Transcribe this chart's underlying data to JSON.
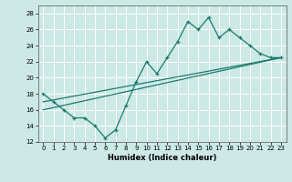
{
  "xlabel": "Humidex (Indice chaleur)",
  "bg_color": "#cce9e5",
  "grid_color": "#b0d8d4",
  "line_color": "#1a7a6e",
  "xlim": [
    -0.5,
    23.5
  ],
  "ylim": [
    12,
    29
  ],
  "yticks": [
    12,
    14,
    16,
    18,
    20,
    22,
    24,
    26,
    28
  ],
  "xticks": [
    0,
    1,
    2,
    3,
    4,
    5,
    6,
    7,
    8,
    9,
    10,
    11,
    12,
    13,
    14,
    15,
    16,
    17,
    18,
    19,
    20,
    21,
    22,
    23
  ],
  "data_x": [
    0,
    1,
    2,
    3,
    4,
    5,
    6,
    7,
    8,
    9,
    10,
    11,
    12,
    13,
    14,
    15,
    16,
    17,
    18,
    19,
    20,
    21,
    22,
    23
  ],
  "data_y": [
    18,
    17,
    16,
    15,
    15,
    14,
    12.5,
    13.5,
    16.5,
    19.5,
    22,
    20.5,
    22.5,
    24.5,
    27,
    26,
    27.5,
    25,
    26,
    25,
    24,
    23,
    22.5,
    22.5
  ],
  "trend1_x": [
    0,
    23
  ],
  "trend1_y": [
    17.0,
    22.5
  ],
  "trend2_x": [
    0,
    23
  ],
  "trend2_y": [
    16.0,
    22.5
  ]
}
